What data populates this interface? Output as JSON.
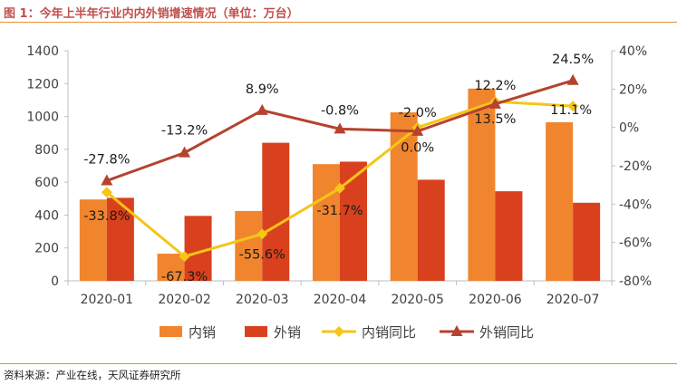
{
  "page": {
    "title": "图 1：今年上半年行业内内外销增速情况（单位：万台）",
    "source": "资料来源：产业在线，天风证券研究所"
  },
  "colors": {
    "title": "#c0504d",
    "rule": "#e69138",
    "domestic_bar": "#f0852d",
    "export_bar": "#d9411e",
    "domestic_line": "#f5c518",
    "export_line": "#b5432f"
  },
  "chart_data": {
    "type": "bar",
    "categories": [
      "2020-01",
      "2020-02",
      "2020-03",
      "2020-04",
      "2020-05",
      "2020-06",
      "2020-07"
    ],
    "ylim_left": [
      0,
      1400
    ],
    "yticks_left": [
      "0",
      "200",
      "400",
      "600",
      "800",
      "1000",
      "1200",
      "1400"
    ],
    "ylim_right": [
      -80,
      40
    ],
    "yticks_right": [
      "-80%",
      "-60%",
      "-40%",
      "-20%",
      "0%",
      "20%",
      "40%"
    ],
    "grid": false,
    "legend_position": "bottom",
    "series": [
      {
        "name": "内销",
        "type": "bar",
        "axis": "left",
        "values": [
          495,
          165,
          425,
          710,
          1025,
          1170,
          965
        ]
      },
      {
        "name": "外销",
        "type": "bar",
        "axis": "left",
        "values": [
          505,
          395,
          840,
          725,
          615,
          545,
          475
        ]
      },
      {
        "name": "内销同比",
        "type": "line",
        "axis": "right",
        "values": [
          -33.8,
          -67.3,
          -55.6,
          -31.7,
          0.0,
          13.5,
          11.1
        ],
        "labels": [
          "-33.8%",
          "-67.3%",
          "-55.6%",
          "-31.7%",
          "0.0%",
          "13.5%",
          "11.1%"
        ]
      },
      {
        "name": "外销同比",
        "type": "line",
        "axis": "right",
        "values": [
          -27.8,
          -13.2,
          8.9,
          -0.8,
          -2.0,
          12.2,
          24.5
        ],
        "labels": [
          "-27.8%",
          "-13.2%",
          "8.9%",
          "-0.8%",
          "-2.0%",
          "12.2%",
          "24.5%"
        ]
      }
    ]
  }
}
